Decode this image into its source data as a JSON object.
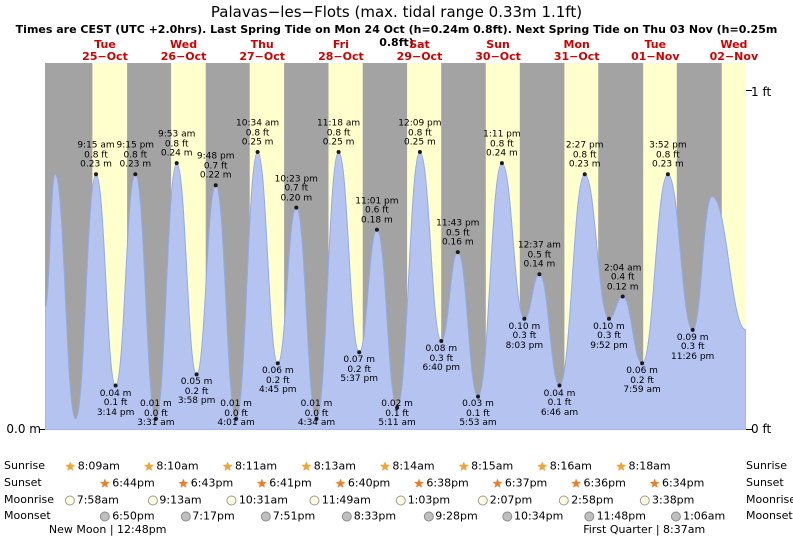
{
  "header": {
    "title": "Palavas−les−Flots (max. tidal range 0.33m 1.1ft)",
    "subtitle": "Times are CEST (UTC +2.0hrs). Last Spring Tide on Mon 24 Oct (h=0.24m 0.8ft). Next Spring Tide on Thu 03 Nov (h=0.25m 0.8ft)"
  },
  "axes": {
    "left_bottom": "0.0 m",
    "right_top": "1 ft",
    "right_bottom": "0 ft"
  },
  "colors": {
    "night_band": "#a3a3a3",
    "day_band": "#ffffcd",
    "tide_fill": "#b4c3f0",
    "tide_stroke": "#93a9e8",
    "marker_dot": "#1a1a1a",
    "day_label_red": "#d40000",
    "sunrise_star": "#f5a623",
    "sunset_star": "#ee7f1d",
    "moonrise_fill": "#fffde0",
    "moonrise_border": "#9a9a9a",
    "moonset_fill": "#bfbfbf",
    "moonset_border": "#8a8a8a"
  },
  "chart_data": {
    "type": "area",
    "title": "Palavas−les−Flots tide heights",
    "ylabel_left": "0.0 m",
    "ylabel_right": [
      "1 ft",
      "0 ft"
    ],
    "y_range_m": [
      0,
      0.33
    ],
    "days": [
      {
        "weekday": "Tue",
        "date": "25−Oct"
      },
      {
        "weekday": "Wed",
        "date": "26−Oct"
      },
      {
        "weekday": "Thu",
        "date": "27−Oct"
      },
      {
        "weekday": "Fri",
        "date": "28−Oct"
      },
      {
        "weekday": "Sat",
        "date": "29−Oct"
      },
      {
        "weekday": "Sun",
        "date": "30−Oct"
      },
      {
        "weekday": "Mon",
        "date": "31−Oct"
      },
      {
        "weekday": "Tue",
        "date": "01−Nov"
      },
      {
        "weekday": "Wed",
        "date": "02−Nov"
      }
    ],
    "tide_events": [
      {
        "kind": "high",
        "day": 0,
        "time": "9:15 am",
        "ft": "0.8 ft",
        "m": "0.23 m",
        "height_m": 0.23
      },
      {
        "kind": "low",
        "day": 0,
        "time": "3:14 pm",
        "ft": "0.1 ft",
        "m": "0.04 m",
        "height_m": 0.04
      },
      {
        "kind": "high",
        "day": 0,
        "time": "9:15 pm",
        "ft": "0.8 ft",
        "m": "0.23 m",
        "height_m": 0.23
      },
      {
        "kind": "low",
        "day": 1,
        "time": "3:31 am",
        "ft": "0.0 ft",
        "m": "0.01 m",
        "height_m": 0.01
      },
      {
        "kind": "high",
        "day": 1,
        "time": "9:53 am",
        "ft": "0.8 ft",
        "m": "0.24 m",
        "height_m": 0.24
      },
      {
        "kind": "low",
        "day": 1,
        "time": "3:58 pm",
        "ft": "0.2 ft",
        "m": "0.05 m",
        "height_m": 0.05
      },
      {
        "kind": "high",
        "day": 1,
        "time": "9:48 pm",
        "ft": "0.7 ft",
        "m": "0.22 m",
        "height_m": 0.22
      },
      {
        "kind": "low",
        "day": 2,
        "time": "4:01 am",
        "ft": "0.0 ft",
        "m": "0.01 m",
        "height_m": 0.01
      },
      {
        "kind": "high",
        "day": 2,
        "time": "10:34 am",
        "ft": "0.8 ft",
        "m": "0.25 m",
        "height_m": 0.25
      },
      {
        "kind": "low",
        "day": 2,
        "time": "4:45 pm",
        "ft": "0.2 ft",
        "m": "0.06 m",
        "height_m": 0.06
      },
      {
        "kind": "high",
        "day": 2,
        "time": "10:23 pm",
        "ft": "0.7 ft",
        "m": "0.20 m",
        "height_m": 0.2
      },
      {
        "kind": "low",
        "day": 3,
        "time": "4:34 am",
        "ft": "0.0 ft",
        "m": "0.01 m",
        "height_m": 0.01
      },
      {
        "kind": "high",
        "day": 3,
        "time": "11:18 am",
        "ft": "0.8 ft",
        "m": "0.25 m",
        "height_m": 0.25
      },
      {
        "kind": "low",
        "day": 3,
        "time": "5:37 pm",
        "ft": "0.2 ft",
        "m": "0.07 m",
        "height_m": 0.07
      },
      {
        "kind": "high",
        "day": 3,
        "time": "11:01 pm",
        "ft": "0.6 ft",
        "m": "0.18 m",
        "height_m": 0.18
      },
      {
        "kind": "low",
        "day": 4,
        "time": "5:11 am",
        "ft": "0.1 ft",
        "m": "0.02 m",
        "height_m": 0.02
      },
      {
        "kind": "high",
        "day": 4,
        "time": "12:09 pm",
        "ft": "0.8 ft",
        "m": "0.25 m",
        "height_m": 0.25
      },
      {
        "kind": "low",
        "day": 4,
        "time": "6:40 pm",
        "ft": "0.3 ft",
        "m": "0.08 m",
        "height_m": 0.08
      },
      {
        "kind": "high",
        "day": 4,
        "time": "11:43 pm",
        "ft": "0.5 ft",
        "m": "0.16 m",
        "height_m": 0.16
      },
      {
        "kind": "low",
        "day": 5,
        "time": "5:53 am",
        "ft": "0.1 ft",
        "m": "0.03 m",
        "height_m": 0.03
      },
      {
        "kind": "high",
        "day": 5,
        "time": "1:11 pm",
        "ft": "0.8 ft",
        "m": "0.24 m",
        "height_m": 0.24
      },
      {
        "kind": "low",
        "day": 5,
        "time": "8:03 pm",
        "ft": "0.3 ft",
        "m": "0.10 m",
        "height_m": 0.1
      },
      {
        "kind": "high",
        "day": 6,
        "time": "12:37 am",
        "ft": "0.5 ft",
        "m": "0.14 m",
        "height_m": 0.14
      },
      {
        "kind": "low",
        "day": 6,
        "time": "6:46 am",
        "ft": "0.1 ft",
        "m": "0.04 m",
        "height_m": 0.04
      },
      {
        "kind": "high",
        "day": 6,
        "time": "2:27 pm",
        "ft": "0.8 ft",
        "m": "0.23 m",
        "height_m": 0.23
      },
      {
        "kind": "low",
        "day": 6,
        "time": "9:52 pm",
        "ft": "0.3 ft",
        "m": "0.10 m",
        "height_m": 0.1
      },
      {
        "kind": "high",
        "day": 7,
        "time": "2:04 am",
        "ft": "0.4 ft",
        "m": "0.12 m",
        "height_m": 0.12
      },
      {
        "kind": "low",
        "day": 7,
        "time": "7:59 am",
        "ft": "0.2 ft",
        "m": "0.06 m",
        "height_m": 0.06
      },
      {
        "kind": "high",
        "day": 7,
        "time": "3:52 pm",
        "ft": "0.8 ft",
        "m": "0.23 m",
        "height_m": 0.23
      },
      {
        "kind": "low",
        "day": 7,
        "time": "11:26 pm",
        "ft": "0.3 ft",
        "m": "0.09 m",
        "height_m": 0.09
      }
    ],
    "curve_edge_points": [
      {
        "day": -1,
        "hour": 17.7,
        "height_m": 0.11
      },
      {
        "day": -1,
        "hour": 20.75,
        "height_m": 0.23
      },
      {
        "day": 0,
        "hour": 3.0,
        "height_m": 0.01
      },
      {
        "day": 8,
        "hour": 5.3,
        "height_m": 0.21
      },
      {
        "day": 8,
        "hour": 15.7,
        "height_m": 0.09
      }
    ],
    "sun_moon": {
      "row_labels": [
        "Sunrise",
        "Sunset",
        "Moonrise",
        "Moonset"
      ],
      "sunrise": [
        "8:09am",
        "8:10am",
        "8:11am",
        "8:13am",
        "8:14am",
        "8:15am",
        "8:16am",
        "8:18am"
      ],
      "sunset": [
        "6:44pm",
        "6:43pm",
        "6:41pm",
        "6:40pm",
        "6:38pm",
        "6:37pm",
        "6:36pm",
        "6:34pm"
      ],
      "moonrise": [
        "7:58am",
        "9:13am",
        "10:31am",
        "11:49am",
        "1:03pm",
        "2:07pm",
        "2:58pm",
        "3:38pm"
      ],
      "moonset": [
        "6:50pm",
        "7:17pm",
        "7:51pm",
        "8:33pm",
        "9:28pm",
        "10:34pm",
        "11:48pm",
        "1:06am"
      ]
    },
    "moon_phases": [
      {
        "name": "New Moon",
        "time": "12:48pm",
        "label": "New Moon | 12:48pm",
        "day": 0
      },
      {
        "name": "First Quarter",
        "time": "8:37am",
        "label": "First Quarter | 8:37am",
        "day": 7
      }
    ]
  }
}
